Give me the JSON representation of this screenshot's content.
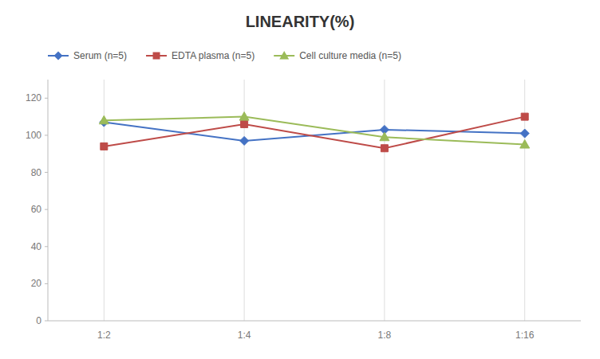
{
  "chart_data": {
    "type": "line",
    "title": "LINEARITY(%)",
    "categories": [
      "1:2",
      "1:4",
      "1:8",
      "1:16"
    ],
    "series": [
      {
        "name": "Serum (n=5)",
        "color": "#4472C4",
        "marker": "diamond",
        "values": [
          107,
          97,
          103,
          101
        ]
      },
      {
        "name": "EDTA plasma (n=5)",
        "color": "#BE4B48",
        "marker": "square",
        "values": [
          94,
          106,
          93,
          110
        ]
      },
      {
        "name": "Cell culture media (n=5)",
        "color": "#9BBB59",
        "marker": "triangle",
        "values": [
          108,
          110,
          99,
          95
        ]
      }
    ],
    "ylim": [
      0,
      130
    ],
    "yticks": [
      0,
      20,
      40,
      60,
      80,
      100,
      120
    ],
    "grid": true,
    "legend": "top"
  }
}
